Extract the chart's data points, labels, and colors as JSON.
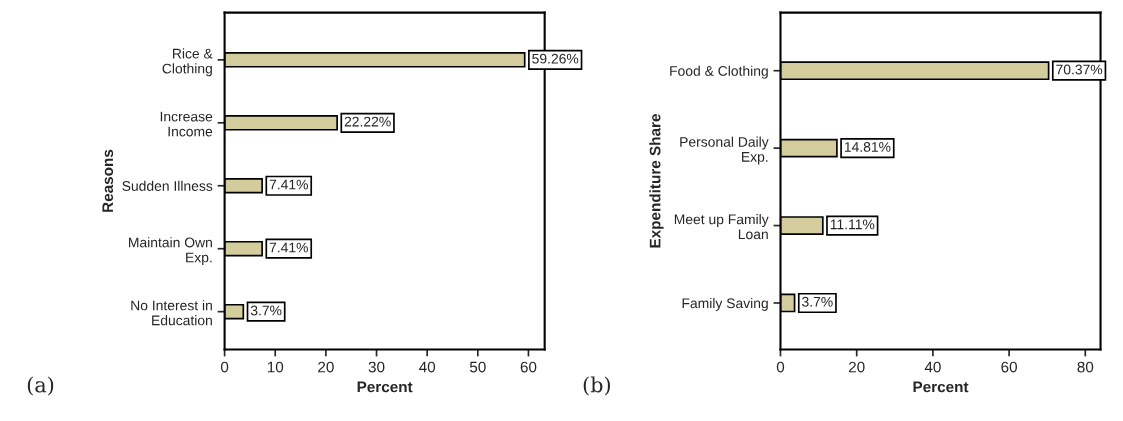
{
  "chart_data": [
    {
      "type": "bar",
      "orientation": "horizontal",
      "xlabel": "Percent",
      "ylabel": "Reasons",
      "categories": [
        "Rice &\nClothing",
        "Increase\nIncome",
        "Sudden Illness",
        "Maintain Own\nExp.",
        "No Interest in\nEducation"
      ],
      "values": [
        59.26,
        22.22,
        7.41,
        7.41,
        3.7
      ],
      "color": "#d3cc9c",
      "value_labels": [
        "59.26%",
        "22.22%",
        "7.41%",
        "7.41%",
        "3.7%"
      ],
      "xlim": [
        0,
        63.2
      ],
      "xticks": [
        0,
        10,
        20,
        30,
        40,
        50,
        60
      ],
      "grid": false,
      "annotations": [
        "(a)"
      ]
    },
    {
      "type": "bar",
      "orientation": "horizontal",
      "xlabel": "Percent",
      "ylabel": "Expenditure Share",
      "categories": [
        "Food & Clothing",
        "Personal Daily\nExp.",
        "Meet up Family\nLoan",
        "Family Saving"
      ],
      "values": [
        70.37,
        14.81,
        11.11,
        3.7
      ],
      "color": "#d3cc9c",
      "value_labels": [
        "70.37%",
        "14.81%",
        "11.11%",
        "3.7%"
      ],
      "xlim": [
        0,
        84
      ],
      "xticks": [
        0,
        20,
        40,
        60,
        80
      ],
      "grid": false,
      "annotations": [
        "(b)"
      ]
    }
  ]
}
